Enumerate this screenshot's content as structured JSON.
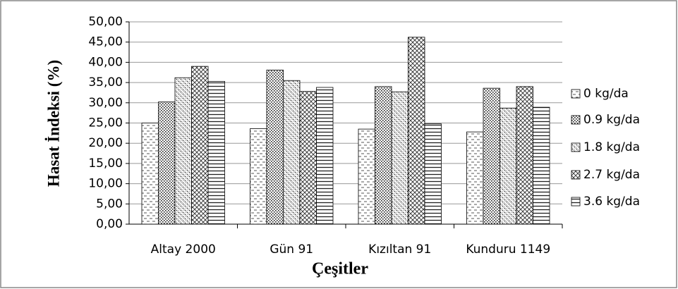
{
  "chart_data": {
    "type": "bar",
    "y_label": "Hasat İndeksi (%)",
    "x_label": "Çeşitler",
    "categories": [
      "Altay 2000",
      "Gün 91",
      "Kızıltan 91",
      "Kunduru 1149"
    ],
    "series": [
      {
        "name": "0 kg/da",
        "color": "#000000",
        "values": [
          25.0,
          23.6,
          23.5,
          22.8
        ]
      },
      {
        "name": "0.9 kg/da",
        "color": "#000000",
        "values": [
          30.2,
          38.1,
          34.0,
          33.6
        ]
      },
      {
        "name": "1.8 kg/da",
        "color": "#000000",
        "values": [
          36.2,
          35.5,
          32.7,
          28.7
        ]
      },
      {
        "name": "2.7 kg/da",
        "color": "#000000",
        "values": [
          39.0,
          32.8,
          46.2,
          34.0
        ]
      },
      {
        "name": "3.6 kg/da",
        "color": "#000000",
        "values": [
          35.3,
          33.8,
          24.8,
          28.9
        ]
      }
    ],
    "ylim": [
      0,
      50
    ],
    "yticks": [
      {
        "value": 0,
        "label": "0,00"
      },
      {
        "value": 5,
        "label": "5,00"
      },
      {
        "value": 10,
        "label": "10,00"
      },
      {
        "value": 15,
        "label": "15,00"
      },
      {
        "value": 20,
        "label": "20,00"
      },
      {
        "value": 25,
        "label": "25,00"
      },
      {
        "value": 30,
        "label": "30,00"
      },
      {
        "value": 35,
        "label": "35,00"
      },
      {
        "value": 40,
        "label": "40,00"
      },
      {
        "value": 45,
        "label": "45,00"
      },
      {
        "value": 50,
        "label": "50,00"
      }
    ],
    "grid": true,
    "legend": "right"
  }
}
